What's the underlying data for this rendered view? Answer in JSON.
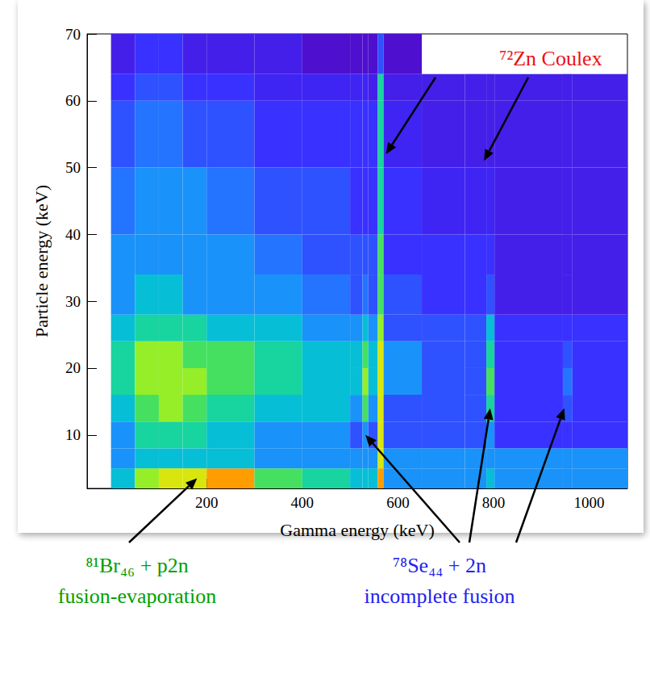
{
  "chart_data": {
    "type": "heatmap",
    "x_label": "Gamma energy (keV)",
    "y_label": "Particle energy (keV)",
    "xlim": [
      -50,
      1080
    ],
    "ylim": [
      2,
      70
    ],
    "xticks": [
      200,
      400,
      600,
      800,
      1000
    ],
    "yticks": [
      10,
      20,
      30,
      40,
      50,
      60,
      70
    ],
    "grid": false,
    "x_bins": [
      0,
      50,
      100,
      150,
      200,
      300,
      400,
      500,
      526,
      538,
      558,
      570,
      650,
      740,
      785,
      802,
      945,
      965,
      1080
    ],
    "y_bins": [
      2,
      5,
      8,
      12,
      16,
      20,
      24,
      28,
      34,
      40,
      50,
      60,
      64,
      70
    ],
    "zlim": [
      0,
      10
    ],
    "counts": [
      [
        4,
        7,
        8,
        8,
        9,
        6,
        5,
        4,
        4,
        4,
        9,
        3,
        3,
        3,
        4,
        3,
        3,
        3
      ],
      [
        3,
        4,
        4,
        4,
        4,
        3,
        3,
        3,
        3,
        3,
        8,
        3,
        3,
        3,
        3,
        3,
        3,
        3
      ],
      [
        3,
        5,
        5,
        5,
        4,
        3,
        3,
        2,
        3,
        2,
        8,
        2,
        2,
        2,
        3,
        1.5,
        1.5,
        1.5
      ],
      [
        4,
        6,
        7,
        6,
        5,
        4,
        4,
        3,
        6,
        3,
        8,
        2,
        2,
        2,
        5,
        1.5,
        2,
        1.5
      ],
      [
        5,
        7,
        7,
        7,
        6,
        5,
        4,
        4,
        7,
        4,
        8,
        3,
        2,
        2,
        6,
        1.5,
        2.5,
        1.5
      ],
      [
        5,
        7,
        7,
        6,
        6,
        5,
        4,
        4,
        6,
        4,
        8,
        3,
        2,
        2,
        5,
        1.5,
        2,
        1.5
      ],
      [
        4,
        5,
        5,
        5,
        4,
        4,
        3,
        3,
        4,
        3,
        7,
        2,
        2,
        2,
        4,
        1.5,
        1.5,
        1.5
      ],
      [
        3,
        4,
        4,
        3,
        3,
        3,
        2.5,
        2,
        2.5,
        2,
        6,
        2,
        1.5,
        1.5,
        2,
        1,
        1,
        1
      ],
      [
        3,
        3,
        3,
        3,
        3,
        2.5,
        2,
        2,
        2,
        2,
        6,
        1.5,
        1.5,
        1.5,
        1.5,
        1,
        1,
        1
      ],
      [
        2.5,
        3,
        3,
        3,
        2.5,
        2,
        2,
        1.5,
        1.5,
        1.5,
        5,
        1.5,
        1.2,
        1.2,
        1.2,
        1,
        1,
        1
      ],
      [
        2,
        2.5,
        2.5,
        2,
        2,
        1.5,
        1.5,
        1.5,
        1.5,
        1.5,
        5,
        1.2,
        1,
        1,
        1,
        1,
        1,
        1
      ],
      [
        1.5,
        2,
        2,
        1.5,
        1.5,
        1.2,
        1.2,
        1.2,
        1.2,
        1,
        5,
        1,
        1,
        1,
        1,
        1,
        1,
        1
      ],
      [
        1,
        1.5,
        1.5,
        1,
        1,
        1,
        0.5,
        0.5,
        0.5,
        0.5,
        2,
        0.5,
        0,
        0,
        0,
        0,
        0,
        0
      ]
    ],
    "annotations": [
      {
        "lines": [
          "⁷²Zn Coulex"
        ],
        "color": "#ee1111",
        "points_to": [
          [
            575,
            52
          ],
          [
            780,
            51
          ]
        ]
      },
      {
        "lines": [
          "⁸¹Br₄₆ + p2n",
          "fusion-evaporation"
        ],
        "color": "#00a000",
        "points_to": [
          [
            180,
            3.5
          ]
        ]
      },
      {
        "lines": [
          "⁷⁸Se₄₄ + 2n",
          "incomplete fusion"
        ],
        "color": "#2222ee",
        "points_to": [
          [
            532,
            10
          ],
          [
            793,
            14
          ],
          [
            948,
            14
          ]
        ]
      }
    ]
  }
}
